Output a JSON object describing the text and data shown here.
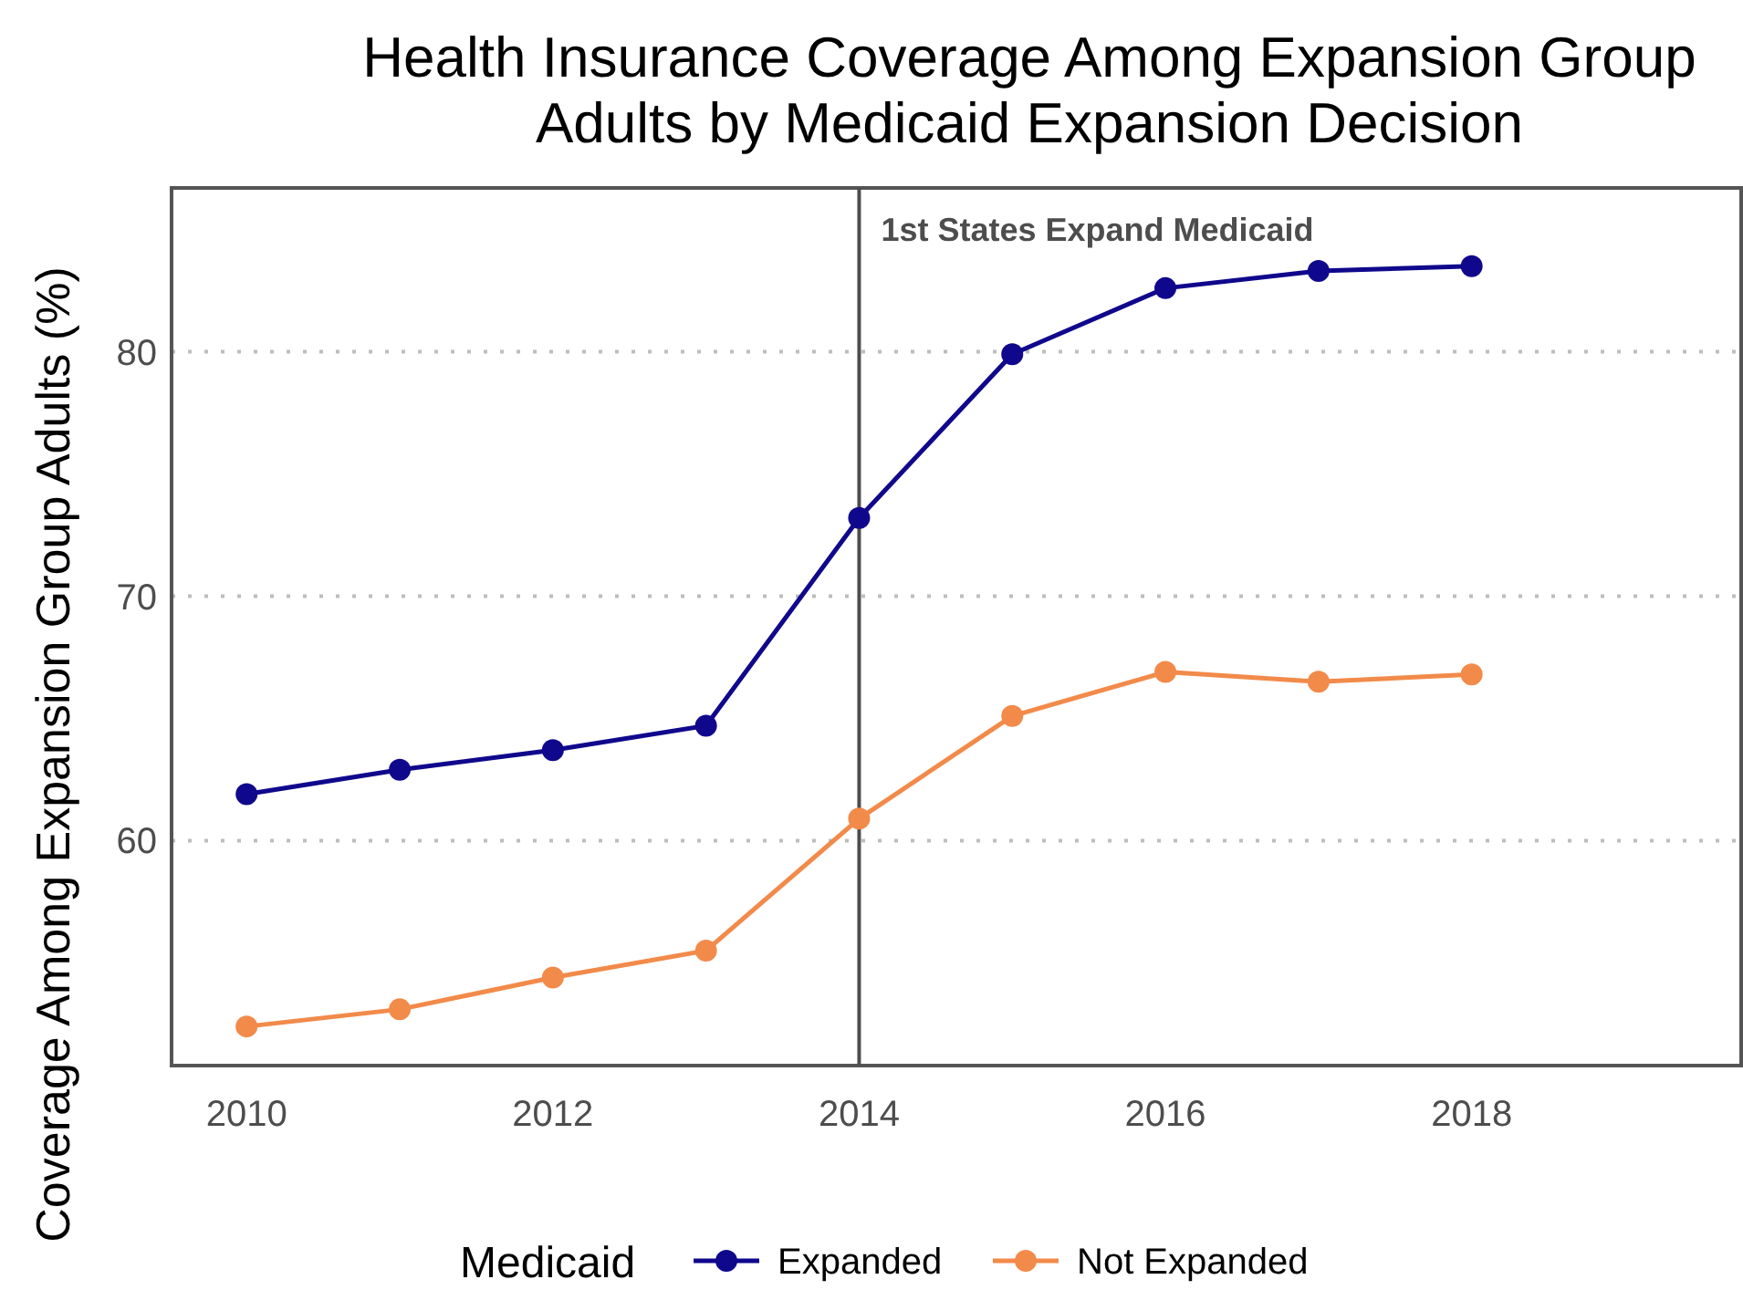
{
  "chart_data": {
    "type": "line",
    "title": "Health Insurance Coverage Among Expansion Group Adults by Medicaid Expansion Decision",
    "ylabel": "Coverage Among Expansion Group Adults (%)",
    "legend_title": "Medicaid",
    "x": [
      2010,
      2011,
      2012,
      2013,
      2014,
      2015,
      2016,
      2017,
      2018
    ],
    "series": [
      {
        "name": "Expanded",
        "color": "#10088c",
        "values": [
          61.9,
          62.9,
          63.7,
          64.7,
          73.2,
          79.9,
          82.6,
          83.3,
          83.5
        ]
      },
      {
        "name": "Not Expanded",
        "color": "#f28a4a",
        "values": [
          52.4,
          53.1,
          54.4,
          55.5,
          60.9,
          65.1,
          66.9,
          66.5,
          66.8
        ]
      }
    ],
    "xlim": [
      2009.51,
      2019.76
    ],
    "xticks": [
      2010,
      2012,
      2014,
      2016,
      2018
    ],
    "ylim": [
      50.8,
      86.7
    ],
    "yticks": [
      60,
      70,
      80
    ],
    "ref_lines": [
      {
        "axis": "x",
        "value": 2014,
        "label": "1st States Expand Medicaid",
        "color": "#4d4d4d",
        "line_style": "solid"
      }
    ],
    "grid": "y",
    "legend": "bottom",
    "marker": "circle",
    "line_style": "solid"
  }
}
